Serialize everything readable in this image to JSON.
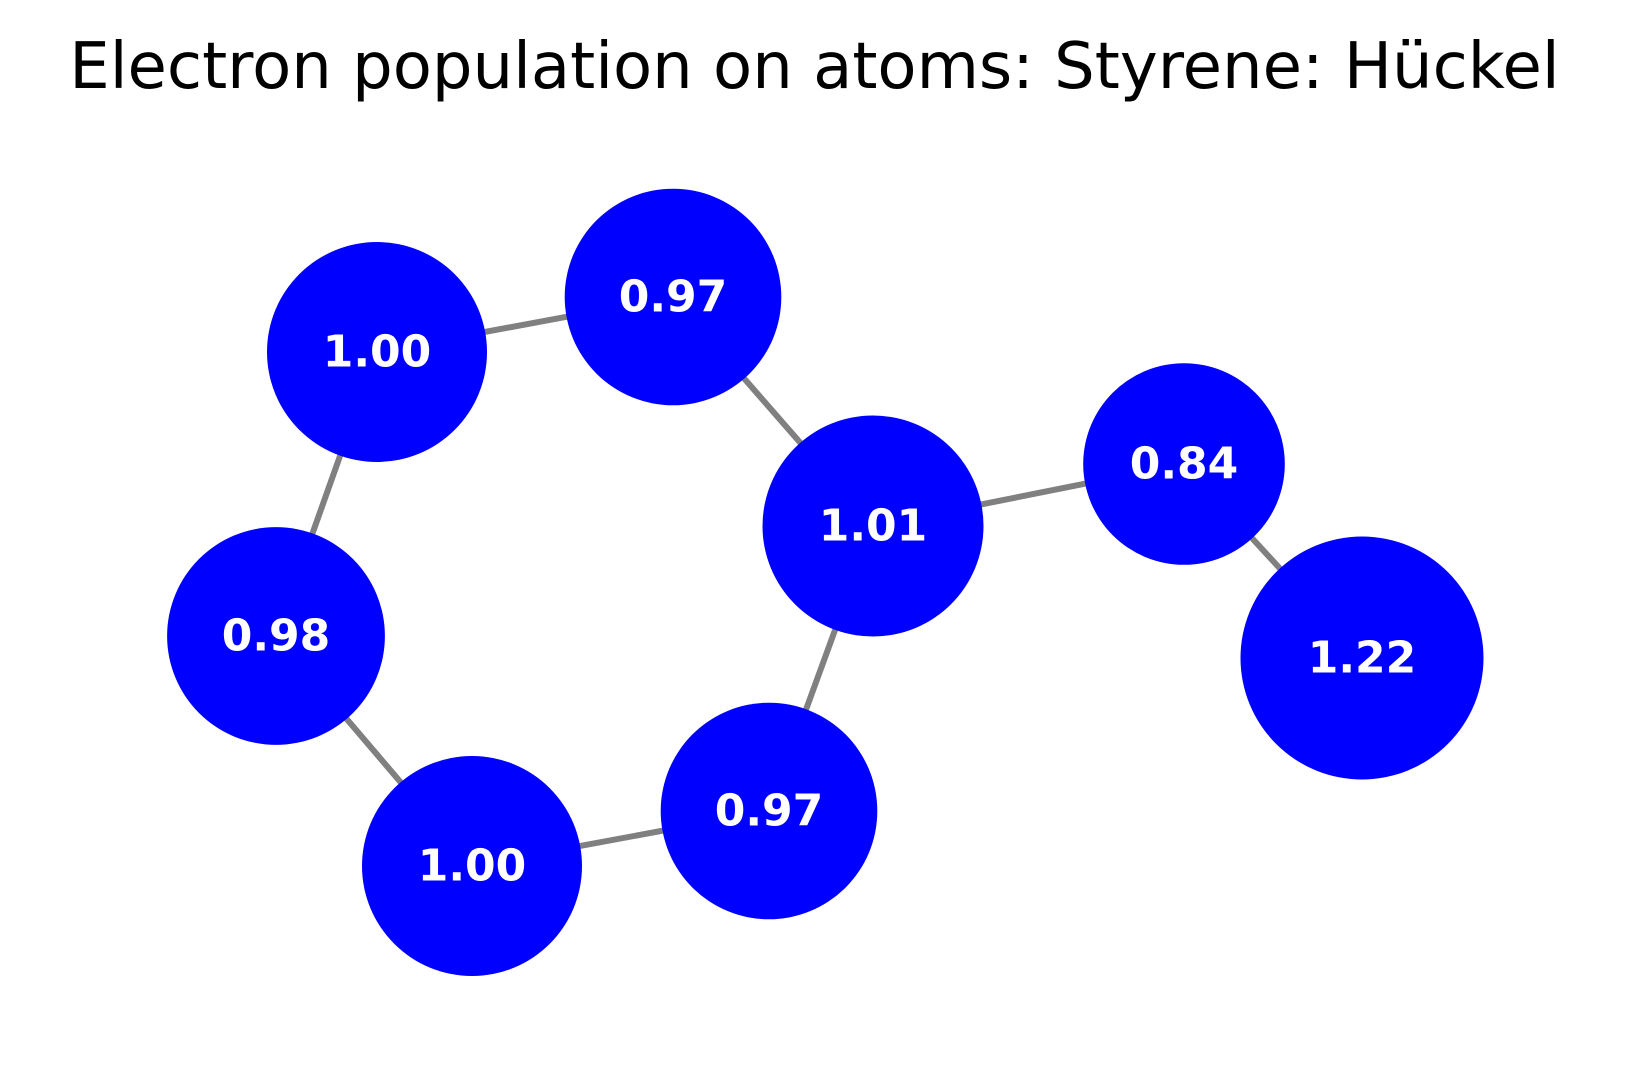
{
  "title": "Electron population on atoms: Styrene: Hückel",
  "colors": {
    "atom_fill": "#0000ff",
    "atom_label": "#ffffff",
    "bond": "#808080",
    "background": "#ffffff"
  },
  "graph": {
    "atoms": [
      {
        "id": "a1",
        "population": 1.0,
        "label": "1.00"
      },
      {
        "id": "a2",
        "population": 0.97,
        "label": "0.97"
      },
      {
        "id": "a3",
        "population": 1.01,
        "label": "1.01"
      },
      {
        "id": "a4",
        "population": 0.97,
        "label": "0.97"
      },
      {
        "id": "a5",
        "population": 1.0,
        "label": "1.00"
      },
      {
        "id": "a6",
        "population": 0.98,
        "label": "0.98"
      },
      {
        "id": "a7",
        "population": 0.84,
        "label": "0.84"
      },
      {
        "id": "a8",
        "population": 1.22,
        "label": "1.22"
      }
    ],
    "bonds": [
      [
        "a1",
        "a2"
      ],
      [
        "a2",
        "a3"
      ],
      [
        "a3",
        "a4"
      ],
      [
        "a4",
        "a5"
      ],
      [
        "a5",
        "a6"
      ],
      [
        "a6",
        "a1"
      ],
      [
        "a3",
        "a7"
      ],
      [
        "a7",
        "a8"
      ]
    ]
  }
}
